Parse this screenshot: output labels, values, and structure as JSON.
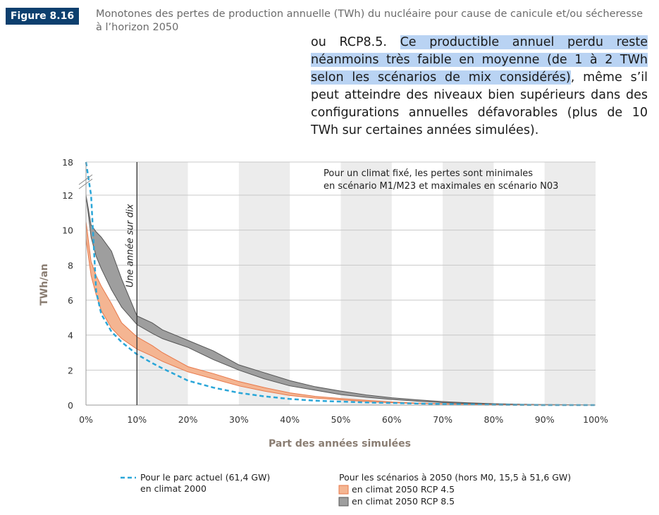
{
  "figure": {
    "number": "Figure 8.16",
    "title": "Monotones des pertes de production annuelle (TWh) du nucléaire pour cause de canicule et/ou sécheresse à l’horizon 2050"
  },
  "overlay_text": {
    "part1": "ou RCP8.5. ",
    "highlight": "Ce productible annuel perdu reste néanmoins très faible en moyenne (de 1 à 2 TWh selon les scénarios de mix considérés)",
    "part2": ", même s’il peut atteindre des niveaux bien supérieurs dans des configurations annuelles défavorables (plus de 10 TWh sur certaines années simulées)."
  },
  "colors": {
    "figure_badge": "#0d3f6e",
    "rcp45_fill": "#f4b592",
    "rcp45_line": "#e8784a",
    "rcp85_fill": "#9e9e9e",
    "rcp85_line": "#555555",
    "current_line": "#2aa6d8",
    "band_shade": "#ececec"
  },
  "chart_data": {
    "type": "area",
    "xlabel": "Part des années simulées",
    "ylabel": "TWh/an",
    "x_ticks": [
      "0%",
      "10%",
      "20%",
      "30%",
      "40%",
      "50%",
      "60%",
      "70%",
      "80%",
      "90%",
      "100%"
    ],
    "y_ticks": [
      "0",
      "2",
      "4",
      "6",
      "8",
      "10",
      "12",
      "18"
    ],
    "xlim": [
      0,
      100
    ],
    "ylim": [
      0,
      18
    ],
    "y_axis_break": "12 à 18",
    "grid": true,
    "annotation_box": "Pour un climat fixé, les pertes sont minimales en scénario M1/M23 et maximales en scénario N03",
    "vline": {
      "x": 10,
      "label": "Une année sur dix"
    },
    "x": [
      0,
      1,
      2,
      3,
      5,
      7,
      10,
      13,
      15,
      20,
      25,
      30,
      35,
      40,
      45,
      50,
      55,
      60,
      65,
      70,
      75,
      80,
      85,
      90,
      95,
      100
    ],
    "series": [
      {
        "name": "en climat 2050 RCP 8.5",
        "lower": [
          12.0,
          9.6,
          8.5,
          7.8,
          6.6,
          5.6,
          4.6,
          4.1,
          3.8,
          3.3,
          2.6,
          2.0,
          1.5,
          1.1,
          0.85,
          0.6,
          0.45,
          0.32,
          0.22,
          0.14,
          0.09,
          0.05,
          0.03,
          0.02,
          0.01,
          0.0
        ],
        "upper": [
          12.0,
          10.3,
          9.9,
          9.6,
          8.8,
          7.2,
          5.1,
          4.7,
          4.3,
          3.7,
          3.1,
          2.3,
          1.85,
          1.4,
          1.05,
          0.8,
          0.58,
          0.42,
          0.3,
          0.2,
          0.13,
          0.08,
          0.05,
          0.03,
          0.02,
          0.0
        ]
      },
      {
        "name": "en climat 2050 RCP 4.5",
        "lower": [
          9.5,
          7.4,
          6.3,
          5.4,
          4.4,
          3.8,
          3.2,
          2.8,
          2.5,
          1.9,
          1.5,
          1.1,
          0.8,
          0.55,
          0.4,
          0.3,
          0.2,
          0.13,
          0.09,
          0.06,
          0.04,
          0.02,
          0.01,
          0.01,
          0.0,
          0.0
        ],
        "upper": [
          10.5,
          8.2,
          7.4,
          6.8,
          5.8,
          4.7,
          3.9,
          3.4,
          3.0,
          2.2,
          1.8,
          1.35,
          1.0,
          0.7,
          0.5,
          0.38,
          0.27,
          0.18,
          0.12,
          0.08,
          0.05,
          0.03,
          0.02,
          0.01,
          0.01,
          0.0
        ]
      },
      {
        "name": "Pour le parc actuel (61,4 GW) en climat 2000",
        "values": [
          18.0,
          12.0,
          6.5,
          5.2,
          4.2,
          3.6,
          2.9,
          2.4,
          2.1,
          1.4,
          1.0,
          0.7,
          0.5,
          0.35,
          0.25,
          0.2,
          0.15,
          0.12,
          0.09,
          0.06,
          0.04,
          0.02,
          0.01,
          0.0,
          0.0,
          0.0
        ]
      }
    ]
  },
  "legend": {
    "current_line1": "Pour le parc actuel (61,4 GW)",
    "current_line2": "en climat 2000",
    "scenarios_header": "Pour les scénarios à 2050 (hors M0, 15,5 à 51,6 GW)",
    "rcp45": "en climat 2050 RCP 4.5",
    "rcp85": "en climat 2050 RCP 8.5"
  }
}
